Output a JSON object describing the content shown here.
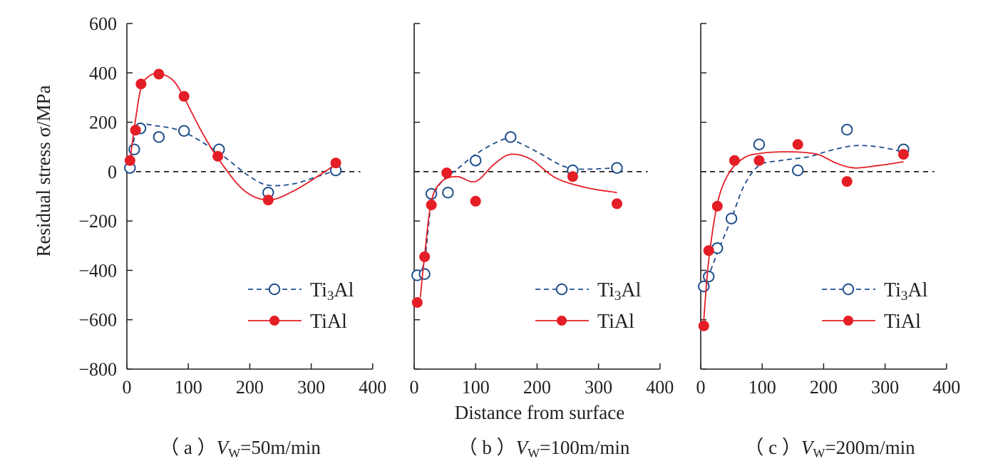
{
  "figure": {
    "ylabel": "Residual stress σ/MPa",
    "xlabel": "Distance from surface"
  },
  "colors": {
    "ti3al": "#1f4e8c",
    "tial": "#e41e26",
    "axis": "#231f20",
    "zero_line": "#231f20"
  },
  "legend": {
    "ti3al_prefix": "Ti",
    "ti3al_sub": "3",
    "ti3al_suffix": "Al",
    "tial": "TiAl"
  },
  "chart_data": [
    {
      "type": "scatter",
      "panel": "a",
      "caption_prefix": "（ a ）",
      "caption_var": "V",
      "caption_sub": "W",
      "caption_rest": "=50m/min",
      "xlim": [
        0,
        400
      ],
      "ylim": [
        -800,
        600
      ],
      "xticks": [
        0,
        100,
        200,
        300,
        400
      ],
      "yticks": [
        600,
        400,
        200,
        0,
        -200,
        -400,
        -600,
        -800
      ],
      "ytick_labels": [
        "600",
        "400",
        "200",
        "0",
        "−200",
        "−400",
        "−600",
        "−800"
      ],
      "series": [
        {
          "name": "Ti3Al",
          "marker": "open-circle",
          "line": "dashed",
          "points": [
            [
              5,
              15
            ],
            [
              12,
              90
            ],
            [
              22,
              175
            ],
            [
              52,
              140
            ],
            [
              93,
              165
            ],
            [
              150,
              90
            ],
            [
              230,
              -85
            ],
            [
              340,
              5
            ]
          ],
          "curve": [
            [
              5,
              15
            ],
            [
              12,
              135
            ],
            [
              22,
              188
            ],
            [
              50,
              185
            ],
            [
              93,
              160
            ],
            [
              150,
              75
            ],
            [
              200,
              -20
            ],
            [
              230,
              -55
            ],
            [
              270,
              -50
            ],
            [
              310,
              -20
            ],
            [
              340,
              5
            ]
          ]
        },
        {
          "name": "TiAl",
          "marker": "filled-circle",
          "line": "solid",
          "points": [
            [
              5,
              45
            ],
            [
              14,
              168
            ],
            [
              23,
              355
            ],
            [
              52,
              395
            ],
            [
              93,
              305
            ],
            [
              148,
              62
            ],
            [
              230,
              -115
            ],
            [
              340,
              35
            ]
          ],
          "curve": [
            [
              5,
              45
            ],
            [
              14,
              210
            ],
            [
              23,
              340
            ],
            [
              35,
              385
            ],
            [
              52,
              398
            ],
            [
              75,
              370
            ],
            [
              93,
              300
            ],
            [
              120,
              170
            ],
            [
              148,
              55
            ],
            [
              190,
              -75
            ],
            [
              230,
              -115
            ],
            [
              270,
              -80
            ],
            [
              310,
              -20
            ],
            [
              340,
              30
            ]
          ]
        }
      ]
    },
    {
      "type": "scatter",
      "panel": "b",
      "caption_prefix": "（ b ）",
      "caption_var": "V",
      "caption_sub": "W",
      "caption_rest": "=100m/min",
      "xlim": [
        0,
        400
      ],
      "ylim": [
        -800,
        600
      ],
      "xticks": [
        0,
        100,
        200,
        300,
        400
      ],
      "yticks": [
        600,
        400,
        200,
        0,
        -200,
        -400,
        -600,
        -800
      ],
      "series": [
        {
          "name": "Ti3Al",
          "marker": "open-circle",
          "line": "dashed",
          "points": [
            [
              5,
              -420
            ],
            [
              17,
              -415
            ],
            [
              28,
              -90
            ],
            [
              55,
              -85
            ],
            [
              100,
              45
            ],
            [
              157,
              140
            ],
            [
              258,
              5
            ],
            [
              330,
              15
            ]
          ],
          "curve": [
            [
              5,
              -420
            ],
            [
              17,
              -360
            ],
            [
              28,
              -130
            ],
            [
              45,
              -40
            ],
            [
              70,
              10
            ],
            [
              100,
              70
            ],
            [
              135,
              120
            ],
            [
              157,
              130
            ],
            [
              200,
              80
            ],
            [
              240,
              25
            ],
            [
              270,
              10
            ],
            [
              330,
              15
            ]
          ]
        },
        {
          "name": "TiAl",
          "marker": "filled-circle",
          "line": "solid",
          "points": [
            [
              5,
              -530
            ],
            [
              17,
              -345
            ],
            [
              28,
              -135
            ],
            [
              53,
              -5
            ],
            [
              100,
              -120
            ],
            [
              258,
              -20
            ],
            [
              330,
              -130
            ]
          ],
          "curve": [
            [
              10,
              -510
            ],
            [
              17,
              -340
            ],
            [
              28,
              -120
            ],
            [
              45,
              -40
            ],
            [
              70,
              -20
            ],
            [
              100,
              -40
            ],
            [
              130,
              30
            ],
            [
              157,
              70
            ],
            [
              190,
              50
            ],
            [
              230,
              -25
            ],
            [
              280,
              -65
            ],
            [
              330,
              -85
            ]
          ]
        }
      ]
    },
    {
      "type": "scatter",
      "panel": "c",
      "caption_prefix": "（ c ）",
      "caption_var": "V",
      "caption_sub": "W",
      "caption_rest": "=200m/min",
      "xlim": [
        0,
        400
      ],
      "ylim": [
        -800,
        600
      ],
      "xticks": [
        0,
        100,
        200,
        300,
        400
      ],
      "yticks": [
        600,
        400,
        200,
        0,
        -200,
        -400,
        -600,
        -800
      ],
      "series": [
        {
          "name": "Ti3Al",
          "marker": "open-circle",
          "line": "dashed",
          "points": [
            [
              5,
              -465
            ],
            [
              13,
              -425
            ],
            [
              27,
              -310
            ],
            [
              50,
              -190
            ],
            [
              95,
              110
            ],
            [
              158,
              5
            ],
            [
              238,
              170
            ],
            [
              330,
              90
            ]
          ],
          "curve": [
            [
              5,
              -465
            ],
            [
              13,
              -420
            ],
            [
              27,
              -330
            ],
            [
              50,
              -190
            ],
            [
              70,
              -60
            ],
            [
              95,
              25
            ],
            [
              130,
              45
            ],
            [
              175,
              60
            ],
            [
              210,
              85
            ],
            [
              250,
              105
            ],
            [
              290,
              100
            ],
            [
              330,
              80
            ]
          ]
        },
        {
          "name": "TiAl",
          "marker": "filled-circle",
          "line": "solid",
          "points": [
            [
              5,
              -625
            ],
            [
              13,
              -320
            ],
            [
              27,
              -140
            ],
            [
              55,
              45
            ],
            [
              95,
              45
            ],
            [
              158,
              110
            ],
            [
              238,
              -40
            ],
            [
              330,
              70
            ]
          ],
          "curve": [
            [
              5,
              -600
            ],
            [
              13,
              -360
            ],
            [
              27,
              -130
            ],
            [
              45,
              -10
            ],
            [
              70,
              55
            ],
            [
              100,
              75
            ],
            [
              150,
              80
            ],
            [
              190,
              70
            ],
            [
              220,
              35
            ],
            [
              250,
              15
            ],
            [
              290,
              25
            ],
            [
              330,
              40
            ]
          ]
        }
      ]
    }
  ]
}
